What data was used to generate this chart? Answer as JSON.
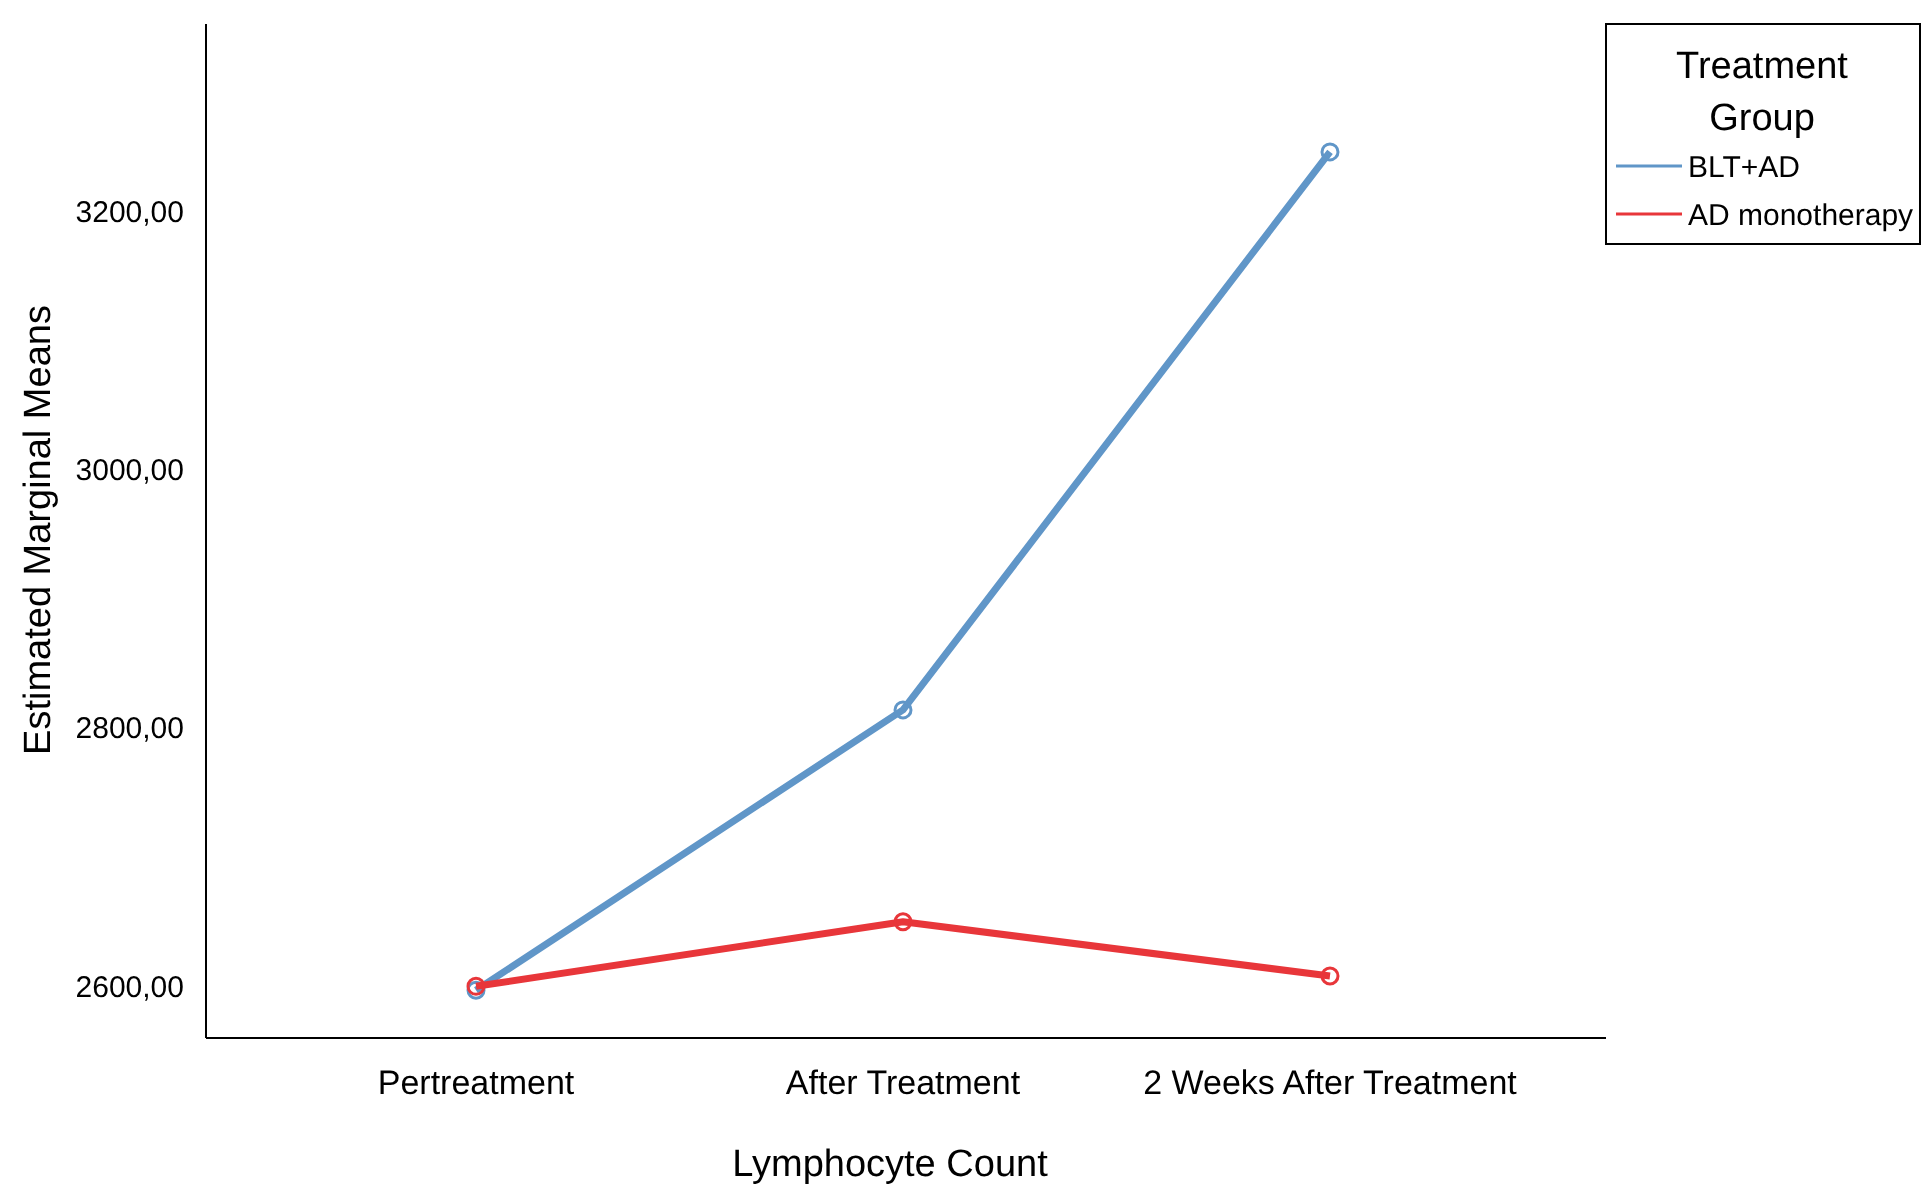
{
  "chart_data": {
    "type": "line",
    "xlabel": "Lymphocyte Count",
    "ylabel": "Estimated Marginal Means",
    "legend_title": "Treatment Group",
    "categories": [
      "Pertreatment",
      "After Treatment",
      "2 Weeks After Treatment"
    ],
    "series": [
      {
        "name": "BLT+AD",
        "color": "#6096c8",
        "values": [
          2597,
          2814,
          3246
        ]
      },
      {
        "name": "AD monotherapy",
        "color": "#e8363a",
        "values": [
          2600,
          2650,
          2608
        ]
      }
    ],
    "ylim": [
      2560,
      3345
    ],
    "yticks": [
      {
        "value": 2600,
        "label": "2600,00"
      },
      {
        "value": 2800,
        "label": "2800,00"
      },
      {
        "value": 3000,
        "label": "3000,00"
      },
      {
        "value": 3200,
        "label": "3200,00"
      }
    ],
    "grid": false,
    "legend": "top right",
    "marker": "circle",
    "line_style": "solid"
  }
}
